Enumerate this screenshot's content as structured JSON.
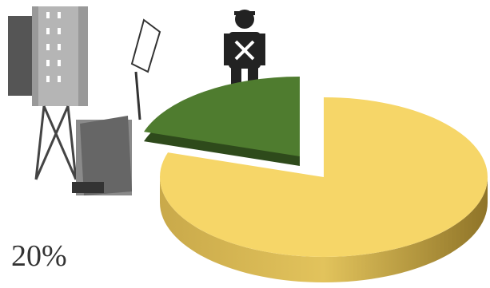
{
  "chart_data": {
    "type": "pie",
    "values": [
      20,
      80
    ],
    "value_labels": [
      "20%",
      null
    ],
    "colors": [
      "#4f7c2f",
      "#f6d668"
    ]
  }
}
